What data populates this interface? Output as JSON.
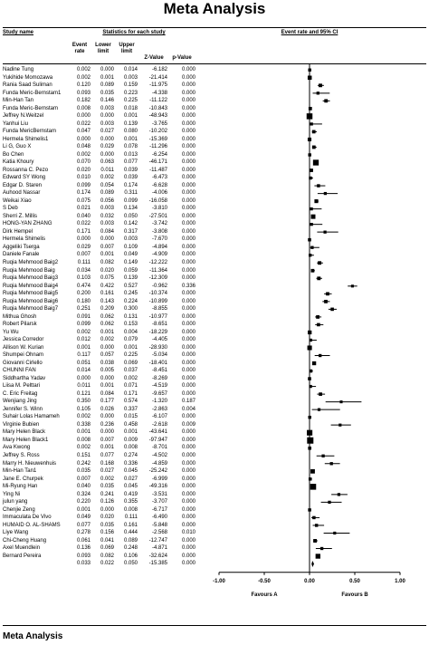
{
  "page_title": "Meta Analysis",
  "bottom_title": "Meta Analysis",
  "headers": {
    "study_name": "Study name",
    "stats_group": "Statistics for each study",
    "event_rate": [
      "Event",
      "rate"
    ],
    "lower_limit": [
      "Lower",
      "limit"
    ],
    "upper_limit": [
      "Upper",
      "limit"
    ],
    "z_value": "Z-Value",
    "p_value": "p-Value",
    "plot_group": "Event rate and 95% CI"
  },
  "favours": {
    "left": "Favours A",
    "right": "Favours B"
  },
  "chart_data": {
    "type": "forest",
    "xlim": [
      -1.0,
      1.0
    ],
    "x_ticks": [
      "-1.00",
      "-0.50",
      "0.00",
      "0.50",
      "1.00"
    ],
    "x_tick_values": [
      -1.0,
      -0.5,
      0.0,
      0.5,
      1.0
    ],
    "studies": [
      {
        "name": "Nadine Tung",
        "rate": "0.002",
        "lower": "0.000",
        "upper": "0.014",
        "z": "-6.182",
        "p": "0.000"
      },
      {
        "name": "Yukihide Momozawa",
        "rate": "0.002",
        "lower": "0.001",
        "upper": "0.003",
        "z": "-21.414",
        "p": "0.000"
      },
      {
        "name": "Rania Saad Suliman",
        "rate": "0.120",
        "lower": "0.089",
        "upper": "0.159",
        "z": "-11.975",
        "p": "0.000"
      },
      {
        "name": "Funda Meric-Bernstam1",
        "rate": "0.093",
        "lower": "0.035",
        "upper": "0.223",
        "z": "-4.338",
        "p": "0.000"
      },
      {
        "name": "Min-Han Tan",
        "rate": "0.182",
        "lower": "0.146",
        "upper": "0.225",
        "z": "-11.122",
        "p": "0.000"
      },
      {
        "name": "Funda Meric-Bernstam",
        "rate": "0.008",
        "lower": "0.003",
        "upper": "0.018",
        "z": "-10.843",
        "p": "0.000"
      },
      {
        "name": "Jeffrey N.Weitzel",
        "rate": "0.000",
        "lower": "0.000",
        "upper": "0.001",
        "z": "-48.943",
        "p": "0.000"
      },
      {
        "name": "Yanhui Liu",
        "rate": "0.022",
        "lower": "0.003",
        "upper": "0.139",
        "z": "-3.765",
        "p": "0.000"
      },
      {
        "name": "Funda MericBernstam",
        "rate": "0.047",
        "lower": "0.027",
        "upper": "0.080",
        "z": "-10.202",
        "p": "0.000"
      },
      {
        "name": "Hermela Shimelis1",
        "rate": "0.000",
        "lower": "0.000",
        "upper": "0.001",
        "z": "-15.369",
        "p": "0.000"
      },
      {
        "name": "Li G, Guo X",
        "rate": "0.048",
        "lower": "0.029",
        "upper": "0.078",
        "z": "-11.296",
        "p": "0.000"
      },
      {
        "name": "Bo Chen",
        "rate": "0.002",
        "lower": "0.000",
        "upper": "0.013",
        "z": "-6.254",
        "p": "0.000"
      },
      {
        "name": "Katia Khoury",
        "rate": "0.070",
        "lower": "0.063",
        "upper": "0.077",
        "z": "-46.171",
        "p": "0.000"
      },
      {
        "name": "Rossanna C. Pezo",
        "rate": "0.020",
        "lower": "0.011",
        "upper": "0.039",
        "z": "-11.487",
        "p": "0.000"
      },
      {
        "name": "Edward SY Wong",
        "rate": "0.010",
        "lower": "0.002",
        "upper": "0.039",
        "z": "-6.473",
        "p": "0.000"
      },
      {
        "name": "Edgar D. Staren",
        "rate": "0.099",
        "lower": "0.054",
        "upper": "0.174",
        "z": "-6.628",
        "p": "0.000"
      },
      {
        "name": "Auhood Nassar",
        "rate": "0.174",
        "lower": "0.089",
        "upper": "0.311",
        "z": "-4.006",
        "p": "0.000"
      },
      {
        "name": "Weikai Xiao",
        "rate": "0.075",
        "lower": "0.056",
        "upper": "0.099",
        "z": "-16.058",
        "p": "0.000"
      },
      {
        "name": "S Deb",
        "rate": "0.021",
        "lower": "0.003",
        "upper": "0.134",
        "z": "-3.810",
        "p": "0.000"
      },
      {
        "name": "Sherri Z. Millis",
        "rate": "0.040",
        "lower": "0.032",
        "upper": "0.050",
        "z": "-27.501",
        "p": "0.000"
      },
      {
        "name": "HONG-YAN ZHANG",
        "rate": "0.022",
        "lower": "0.003",
        "upper": "0.142",
        "z": "-3.742",
        "p": "0.000"
      },
      {
        "name": "Dirk Hempel",
        "rate": "0.171",
        "lower": "0.084",
        "upper": "0.317",
        "z": "-3.808",
        "p": "0.000"
      },
      {
        "name": "Hermela Shimelis",
        "rate": "0.000",
        "lower": "0.000",
        "upper": "0.003",
        "z": "-7.670",
        "p": "0.000"
      },
      {
        "name": "Aggeliki Tserga",
        "rate": "0.029",
        "lower": "0.007",
        "upper": "0.109",
        "z": "-4.894",
        "p": "0.000"
      },
      {
        "name": "Daniele Fanale",
        "rate": "0.007",
        "lower": "0.001",
        "upper": "0.049",
        "z": "-4.909",
        "p": "0.000"
      },
      {
        "name": "Ruqia Mehmood Baig2",
        "rate": "0.111",
        "lower": "0.082",
        "upper": "0.149",
        "z": "-12.222",
        "p": "0.000"
      },
      {
        "name": "Ruqia Mehmood Baig",
        "rate": "0.034",
        "lower": "0.020",
        "upper": "0.059",
        "z": "-11.364",
        "p": "0.000"
      },
      {
        "name": "Ruqia Mehmood Baig3",
        "rate": "0.103",
        "lower": "0.075",
        "upper": "0.139",
        "z": "-12.309",
        "p": "0.000"
      },
      {
        "name": "Ruqia Mehmood Baig4",
        "rate": "0.474",
        "lower": "0.422",
        "upper": "0.527",
        "z": "-0.962",
        "p": "0.336"
      },
      {
        "name": "Ruqia Mehmood Baig5",
        "rate": "0.200",
        "lower": "0.161",
        "upper": "0.245",
        "z": "-10.374",
        "p": "0.000"
      },
      {
        "name": "Ruqia Mehmood Baig6",
        "rate": "0.180",
        "lower": "0.143",
        "upper": "0.224",
        "z": "-10.899",
        "p": "0.000"
      },
      {
        "name": "Ruqia Mehmood Baig7",
        "rate": "0.251",
        "lower": "0.209",
        "upper": "0.300",
        "z": "-8.855",
        "p": "0.000"
      },
      {
        "name": "Mithua Ghosh",
        "rate": "0.091",
        "lower": "0.062",
        "upper": "0.131",
        "z": "-10.977",
        "p": "0.000"
      },
      {
        "name": "Robert Pilarsk",
        "rate": "0.099",
        "lower": "0.062",
        "upper": "0.153",
        "z": "-8.651",
        "p": "0.000"
      },
      {
        "name": "Yu Wu",
        "rate": "0.002",
        "lower": "0.001",
        "upper": "0.004",
        "z": "-18.229",
        "p": "0.000"
      },
      {
        "name": "Jessica Corredor",
        "rate": "0.012",
        "lower": "0.002",
        "upper": "0.079",
        "z": "-4.405",
        "p": "0.000"
      },
      {
        "name": "Allison W. Kurian",
        "rate": "0.001",
        "lower": "0.000",
        "upper": "0.001",
        "z": "-28.930",
        "p": "0.000"
      },
      {
        "name": "Shumpei Ohnam",
        "rate": "0.117",
        "lower": "0.057",
        "upper": "0.225",
        "z": "-5.034",
        "p": "0.000"
      },
      {
        "name": "Giovanni Cirlello",
        "rate": "0.051",
        "lower": "0.038",
        "upper": "0.069",
        "z": "-18.401",
        "p": "0.000"
      },
      {
        "name": "CHUNNI FAN",
        "rate": "0.014",
        "lower": "0.005",
        "upper": "0.037",
        "z": "-8.451",
        "p": "0.000"
      },
      {
        "name": "Siddhartha Yadav",
        "rate": "0.000",
        "lower": "0.000",
        "upper": "0.002",
        "z": "-8.269",
        "p": "0.000"
      },
      {
        "name": "Liisa M. Pelttari",
        "rate": "0.011",
        "lower": "0.001",
        "upper": "0.071",
        "z": "-4.519",
        "p": "0.000"
      },
      {
        "name": "C. Eric Freitag",
        "rate": "0.121",
        "lower": "0.084",
        "upper": "0.171",
        "z": "-9.657",
        "p": "0.000"
      },
      {
        "name": "Wenjiang Jing",
        "rate": "0.350",
        "lower": "0.177",
        "upper": "0.574",
        "z": "-1.320",
        "p": "0.187"
      },
      {
        "name": "Jennifer S. Winn",
        "rate": "0.105",
        "lower": "0.026",
        "upper": "0.337",
        "z": "-2.863",
        "p": "0.004"
      },
      {
        "name": "Suhair Lolas Hamameh",
        "rate": "0.002",
        "lower": "0.000",
        "upper": "0.015",
        "z": "-6.107",
        "p": "0.000"
      },
      {
        "name": "Virginie Bubien",
        "rate": "0.338",
        "lower": "0.236",
        "upper": "0.458",
        "z": "-2.618",
        "p": "0.009"
      },
      {
        "name": "Mary Helen Black",
        "rate": "0.001",
        "lower": "0.000",
        "upper": "0.001",
        "z": "-43.641",
        "p": "0.000"
      },
      {
        "name": "Mary Helen Black1",
        "rate": "0.008",
        "lower": "0.007",
        "upper": "0.009",
        "z": "-97.947",
        "p": "0.000"
      },
      {
        "name": "Ava Kwong",
        "rate": "0.002",
        "lower": "0.001",
        "upper": "0.008",
        "z": "-8.701",
        "p": "0.000"
      },
      {
        "name": "Jeffrey S. Ross",
        "rate": "0.151",
        "lower": "0.077",
        "upper": "0.274",
        "z": "-4.502",
        "p": "0.000"
      },
      {
        "name": "Marry H. Nieuwenhuis",
        "rate": "0.242",
        "lower": "0.168",
        "upper": "0.336",
        "z": "-4.859",
        "p": "0.000"
      },
      {
        "name": "Min-Han Tan1",
        "rate": "0.035",
        "lower": "0.027",
        "upper": "0.045",
        "z": "-25.242",
        "p": "0.000"
      },
      {
        "name": "Jane E. Churpek",
        "rate": "0.007",
        "lower": "0.002",
        "upper": "0.027",
        "z": "-6.999",
        "p": "0.000"
      },
      {
        "name": "Mi-Ryung Han",
        "rate": "0.040",
        "lower": "0.035",
        "upper": "0.045",
        "z": "-49.316",
        "p": "0.000"
      },
      {
        "name": "Ying Ni",
        "rate": "0.324",
        "lower": "0.241",
        "upper": "0.419",
        "z": "-3.531",
        "p": "0.000"
      },
      {
        "name": "julun yang",
        "rate": "0.220",
        "lower": "0.126",
        "upper": "0.355",
        "z": "-3.707",
        "p": "0.000"
      },
      {
        "name": "Chenjie Zeng",
        "rate": "0.001",
        "lower": "0.000",
        "upper": "0.008",
        "z": "-6.717",
        "p": "0.000"
      },
      {
        "name": "Immaculata De Vivo",
        "rate": "0.049",
        "lower": "0.020",
        "upper": "0.111",
        "z": "-6.490",
        "p": "0.000"
      },
      {
        "name": "HUMAID O. AL-SHAMS",
        "rate": "0.077",
        "lower": "0.035",
        "upper": "0.161",
        "z": "-5.848",
        "p": "0.000"
      },
      {
        "name": "Liye Wang",
        "rate": "0.278",
        "lower": "0.156",
        "upper": "0.444",
        "z": "-2.568",
        "p": "0.010"
      },
      {
        "name": "Chi-Cheng Huang",
        "rate": "0.061",
        "lower": "0.041",
        "upper": "0.089",
        "z": "-12.747",
        "p": "0.000"
      },
      {
        "name": "Axel Muendlein",
        "rate": "0.136",
        "lower": "0.069",
        "upper": "0.248",
        "z": "-4.871",
        "p": "0.000"
      },
      {
        "name": "Bernard Pereira",
        "rate": "0.093",
        "lower": "0.082",
        "upper": "0.106",
        "z": "-32.624",
        "p": "0.000"
      }
    ],
    "summary": {
      "rate": "0.033",
      "lower": "0.022",
      "upper": "0.050",
      "z": "-15.385",
      "p": "0.000"
    }
  }
}
